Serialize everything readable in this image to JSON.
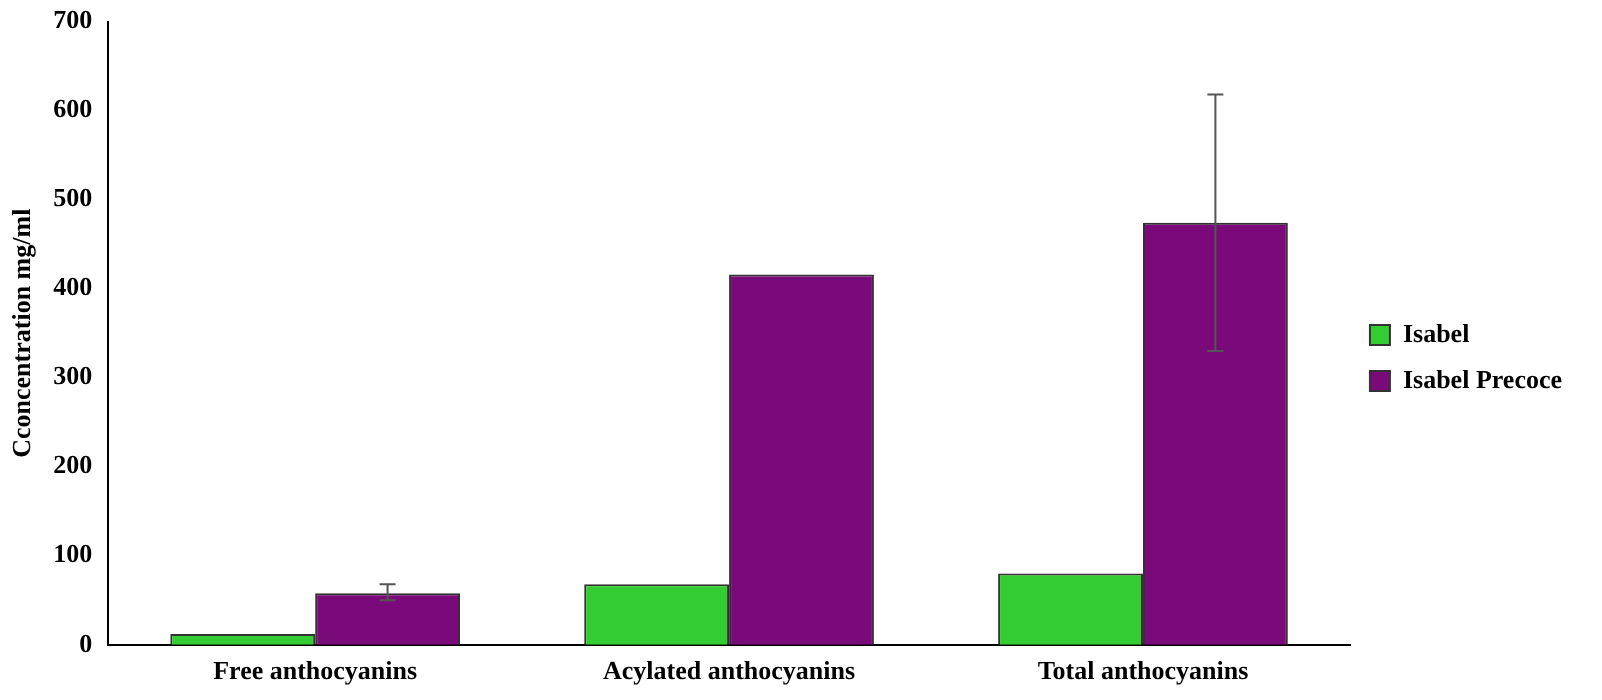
{
  "chart_data": {
    "type": "bar",
    "ylabel": "Cconcentration mg/ml",
    "categories": [
      "Free anthocyanins",
      "Acylated anthocyanins",
      "Total anthocyanins"
    ],
    "series": [
      {
        "name": "Isabel",
        "color": "#33cc33",
        "values": [
          12,
          68,
          80
        ]
      },
      {
        "name": "Isabel Precoce",
        "color": "#7a0a7a",
        "values": [
          58,
          416,
          474
        ],
        "errors": [
          [
            50,
            68
          ],
          null,
          [
            330,
            618
          ]
        ]
      }
    ],
    "ylim": [
      0,
      700
    ],
    "yticks": [
      0,
      100,
      200,
      300,
      400,
      500,
      600,
      700
    ],
    "grid": false,
    "legend": "right"
  }
}
